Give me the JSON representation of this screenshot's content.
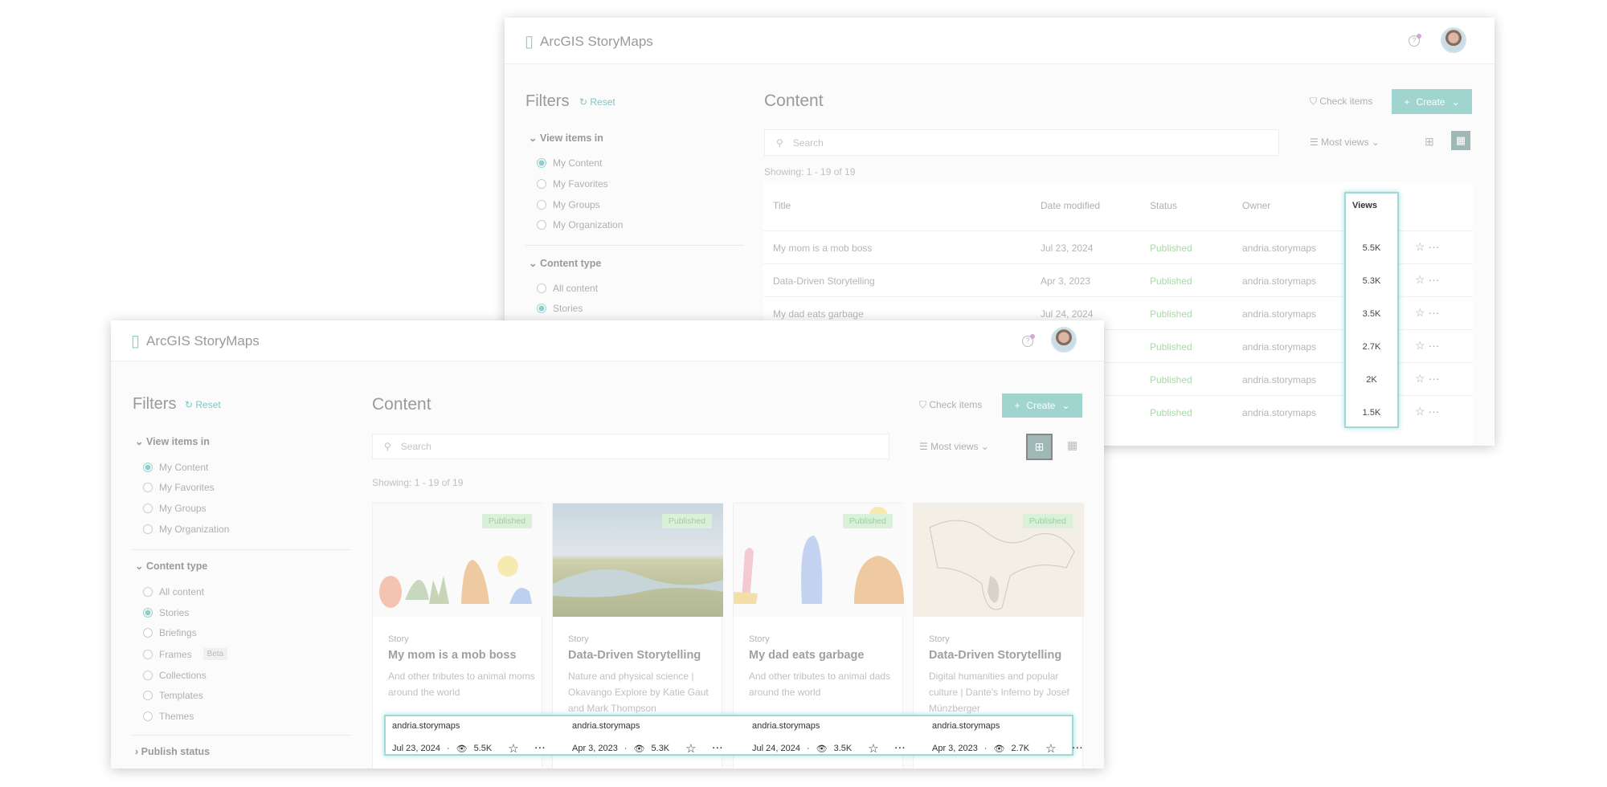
{
  "app": {
    "name": "ArcGIS StoryMaps"
  },
  "filters": {
    "title": "Filters",
    "reset": "Reset",
    "view_items_in": "View items in",
    "view_options": [
      "My Content",
      "My Favorites",
      "My Groups",
      "My Organization"
    ],
    "content_type": "Content type",
    "content_options": [
      "All content",
      "Stories",
      "Briefings",
      "Frames",
      "Collections",
      "Templates",
      "Themes"
    ],
    "beta": "Beta",
    "publish_status": "Publish status"
  },
  "main": {
    "title": "Content",
    "check_items": "Check items",
    "create": "Create",
    "search_placeholder": "Search",
    "sort": "Most views",
    "showing": "Showing: 1 - 19 of 19"
  },
  "table": {
    "headers": {
      "title": "Title",
      "date": "Date modified",
      "status": "Status",
      "owner": "Owner",
      "views": "Views"
    },
    "rows": [
      {
        "title": "My mom is a mob boss",
        "date": "Jul 23, 2024",
        "status": "Published",
        "owner": "andria.storymaps",
        "views": "5.5K"
      },
      {
        "title": "Data-Driven Storytelling",
        "date": "Apr 3, 2023",
        "status": "Published",
        "owner": "andria.storymaps",
        "views": "5.3K"
      },
      {
        "title": "My dad eats garbage",
        "date": "Jul 24, 2024",
        "status": "Published",
        "owner": "andria.storymaps",
        "views": "3.5K"
      },
      {
        "status": "Published",
        "owner": "andria.storymaps",
        "views": "2.7K"
      },
      {
        "status": "Published",
        "owner": "andria.storymaps",
        "views": "2K"
      },
      {
        "status": "Published",
        "owner": "andria.storymaps",
        "views": "1.5K"
      }
    ]
  },
  "cards": [
    {
      "badge": "Published",
      "type": "Story",
      "title": "My mom is a mob boss",
      "desc": "And other tributes to animal moms around the world",
      "owner": "andria.storymaps",
      "date": "Jul 23, 2024",
      "views": "5.5K"
    },
    {
      "badge": "Published",
      "type": "Story",
      "title": "Data-Driven Storytelling",
      "desc": "Nature and physical science | Okavango Explore by Katie Gaut and Mark Thompson",
      "owner": "andria.storymaps",
      "date": "Apr 3, 2023",
      "views": "5.3K"
    },
    {
      "badge": "Published",
      "type": "Story",
      "title": "My dad eats garbage",
      "desc": "And other tributes to animal dads around the world",
      "owner": "andria.storymaps",
      "date": "Jul 24, 2024",
      "views": "3.5K"
    },
    {
      "badge": "Published",
      "type": "Story",
      "title": "Data-Driven Storytelling",
      "desc": "Digital humanities and popular culture | Dante's Inferno by Josef Münzberger",
      "owner": "andria.storymaps",
      "date": "Apr 3, 2023",
      "views": "2.7K"
    }
  ],
  "colors": {
    "accent": "#9fd4cf",
    "highlight": "#9fd8d5",
    "published": "#a9d8a9"
  }
}
